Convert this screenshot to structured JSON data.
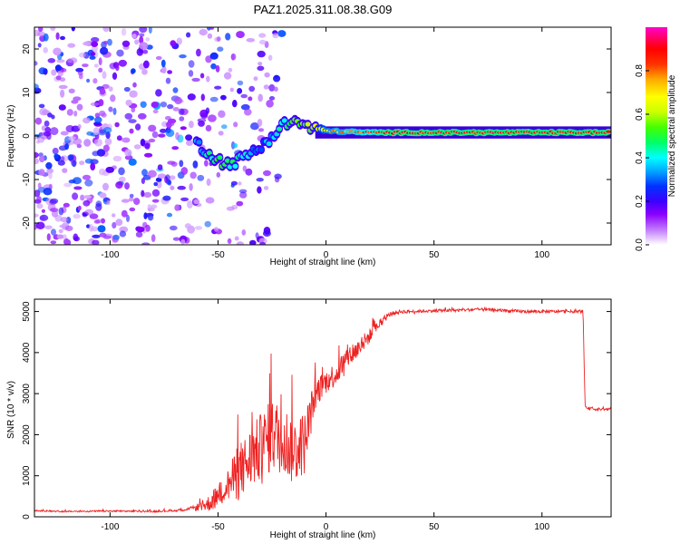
{
  "title": "PAZ1.2025.311.08.38.G09",
  "chart_data": [
    {
      "type": "heatmap",
      "xlabel": "Height of straight line (km)",
      "ylabel": "Frequency (Hz)",
      "xlim": [
        -135,
        132
      ],
      "ylim": [
        -25,
        25
      ],
      "xticks": [
        -100,
        -50,
        0,
        50,
        100
      ],
      "yticks": [
        -20,
        -10,
        0,
        10,
        20
      ],
      "colorbar": {
        "label": "Normalized spectral amplitude",
        "range": [
          0.0,
          1.0
        ],
        "ticks": [
          0.0,
          0.2,
          0.4,
          0.6,
          0.8
        ],
        "tick_labels": [
          "0.0",
          "0.2",
          "0.4",
          "0.6",
          "0.8"
        ],
        "colors": [
          "#ffffff",
          "#c98cff",
          "#8b00ff",
          "#3c00ff",
          "#0033ff",
          "#00aaff",
          "#00ffff",
          "#00ff66",
          "#44ff00",
          "#ccff00",
          "#ffff00",
          "#ffaa00",
          "#ff3300",
          "#ff0000",
          "#ff0077",
          "#ff00cc"
        ]
      },
      "signal_track": {
        "x": [
          -60,
          -55,
          -50,
          -45,
          -40,
          -35,
          -30,
          -25,
          -20,
          -15,
          -10,
          -5,
          0,
          10,
          20,
          30,
          40,
          50,
          60,
          80,
          100,
          120,
          132
        ],
        "freq": [
          -1.5,
          -3.5,
          -5.5,
          -6.5,
          -5.5,
          -4,
          -2.5,
          0,
          2.5,
          3.5,
          2.5,
          1.5,
          1.2,
          1.0,
          0.8,
          0.8,
          0.8,
          0.8,
          0.8,
          0.8,
          0.8,
          0.8,
          0.8
        ],
        "amplitude": [
          0.3,
          0.4,
          0.5,
          0.45,
          0.4,
          0.35,
          0.3,
          0.35,
          0.45,
          0.5,
          0.55,
          0.6,
          0.7,
          0.75,
          0.8,
          0.85,
          0.85,
          0.85,
          0.85,
          0.85,
          0.85,
          0.85,
          0.85
        ]
      },
      "noise_region": {
        "x_range": [
          -135,
          -20
        ],
        "freq_range": [
          -25,
          25
        ],
        "amplitude_range": [
          0.05,
          0.3
        ]
      }
    },
    {
      "type": "line",
      "xlabel": "Height of straight line (km)",
      "ylabel": "SNR (10 * v/v)",
      "xlim": [
        -135,
        132
      ],
      "ylim": [
        0,
        5300
      ],
      "xticks": [
        -100,
        -50,
        0,
        50,
        100
      ],
      "yticks": [
        0,
        1000,
        2000,
        3000,
        4000,
        5000
      ],
      "color": "#ee2222",
      "series": [
        {
          "name": "SNR",
          "x": [
            -135,
            -120,
            -100,
            -80,
            -70,
            -62,
            -55,
            -50,
            -45,
            -40,
            -35,
            -30,
            -25,
            -20,
            -15,
            -10,
            -5,
            0,
            5,
            10,
            15,
            20,
            25,
            30,
            35,
            40,
            50,
            60,
            70,
            80,
            90,
            100,
            110,
            119,
            120,
            125,
            132
          ],
          "y": [
            150,
            130,
            140,
            130,
            150,
            200,
            300,
            500,
            800,
            1100,
            1400,
            1700,
            2000,
            1900,
            1600,
            1800,
            3000,
            3300,
            3500,
            3900,
            4100,
            4400,
            4700,
            4950,
            5000,
            5000,
            5020,
            5030,
            5050,
            5030,
            5000,
            5000,
            5000,
            5000,
            2650,
            2620,
            2620
          ],
          "spread": [
            30,
            30,
            30,
            30,
            40,
            80,
            300,
            500,
            700,
            1200,
            1300,
            1400,
            1500,
            1500,
            1400,
            1300,
            600,
            500,
            500,
            500,
            400,
            300,
            150,
            80,
            80,
            60,
            60,
            60,
            60,
            60,
            70,
            60,
            60,
            60,
            60,
            50,
            50
          ]
        }
      ]
    }
  ]
}
